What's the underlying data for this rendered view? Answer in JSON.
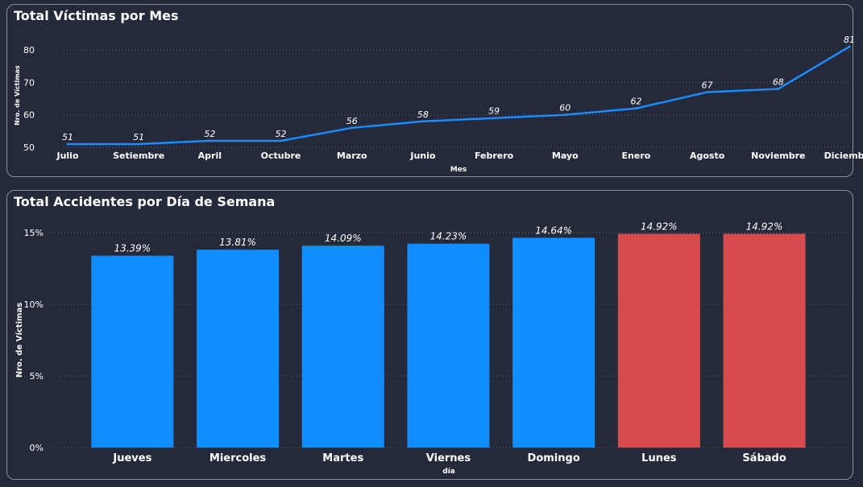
{
  "colors": {
    "background": "#252a3b",
    "line": "#1a8cff",
    "bar_default": "#118dff",
    "bar_highlight": "#d64b4b",
    "gridline": "#5c6272",
    "text": "#ffffff"
  },
  "chart_data": [
    {
      "type": "line",
      "title": "Total Víctimas por Mes",
      "xlabel": "Mes",
      "ylabel": "Nro. de Víctimas",
      "categories": [
        "Julio",
        "Setiembre",
        "April",
        "Octubre",
        "Marzo",
        "Junio",
        "Febrero",
        "Mayo",
        "Enero",
        "Agosto",
        "Noviembre",
        "Diciembre"
      ],
      "values": [
        51,
        51,
        52,
        52,
        56,
        58,
        59,
        60,
        62,
        67,
        68,
        81
      ],
      "value_labels": [
        "51",
        "51",
        "52",
        "52",
        "56",
        "58",
        "59",
        "60",
        "62",
        "67",
        "68",
        "81"
      ],
      "ylim": [
        50,
        82
      ],
      "yticks": [
        50,
        60,
        70,
        80
      ],
      "ytick_labels": [
        "50",
        "60",
        "70",
        "80"
      ],
      "grid": true
    },
    {
      "type": "bar",
      "title": "Total Accidentes por Día de Semana",
      "xlabel": "día",
      "ylabel": "Nro. de Víctimas",
      "categories": [
        "Jueves",
        "Miercoles",
        "Martes",
        "Viernes",
        "Domingo",
        "Lunes",
        "Sábado"
      ],
      "values": [
        13.39,
        13.81,
        14.09,
        14.23,
        14.64,
        14.92,
        14.92
      ],
      "value_labels": [
        "13.39%",
        "13.81%",
        "14.09%",
        "14.23%",
        "14.64%",
        "14.92%",
        "14.92%"
      ],
      "highlighted": [
        false,
        false,
        false,
        false,
        false,
        true,
        true
      ],
      "ylim": [
        0,
        15
      ],
      "yticks": [
        0,
        5,
        10,
        15
      ],
      "ytick_labels": [
        "0%",
        "5%",
        "10%",
        "15%"
      ],
      "grid": true
    }
  ]
}
